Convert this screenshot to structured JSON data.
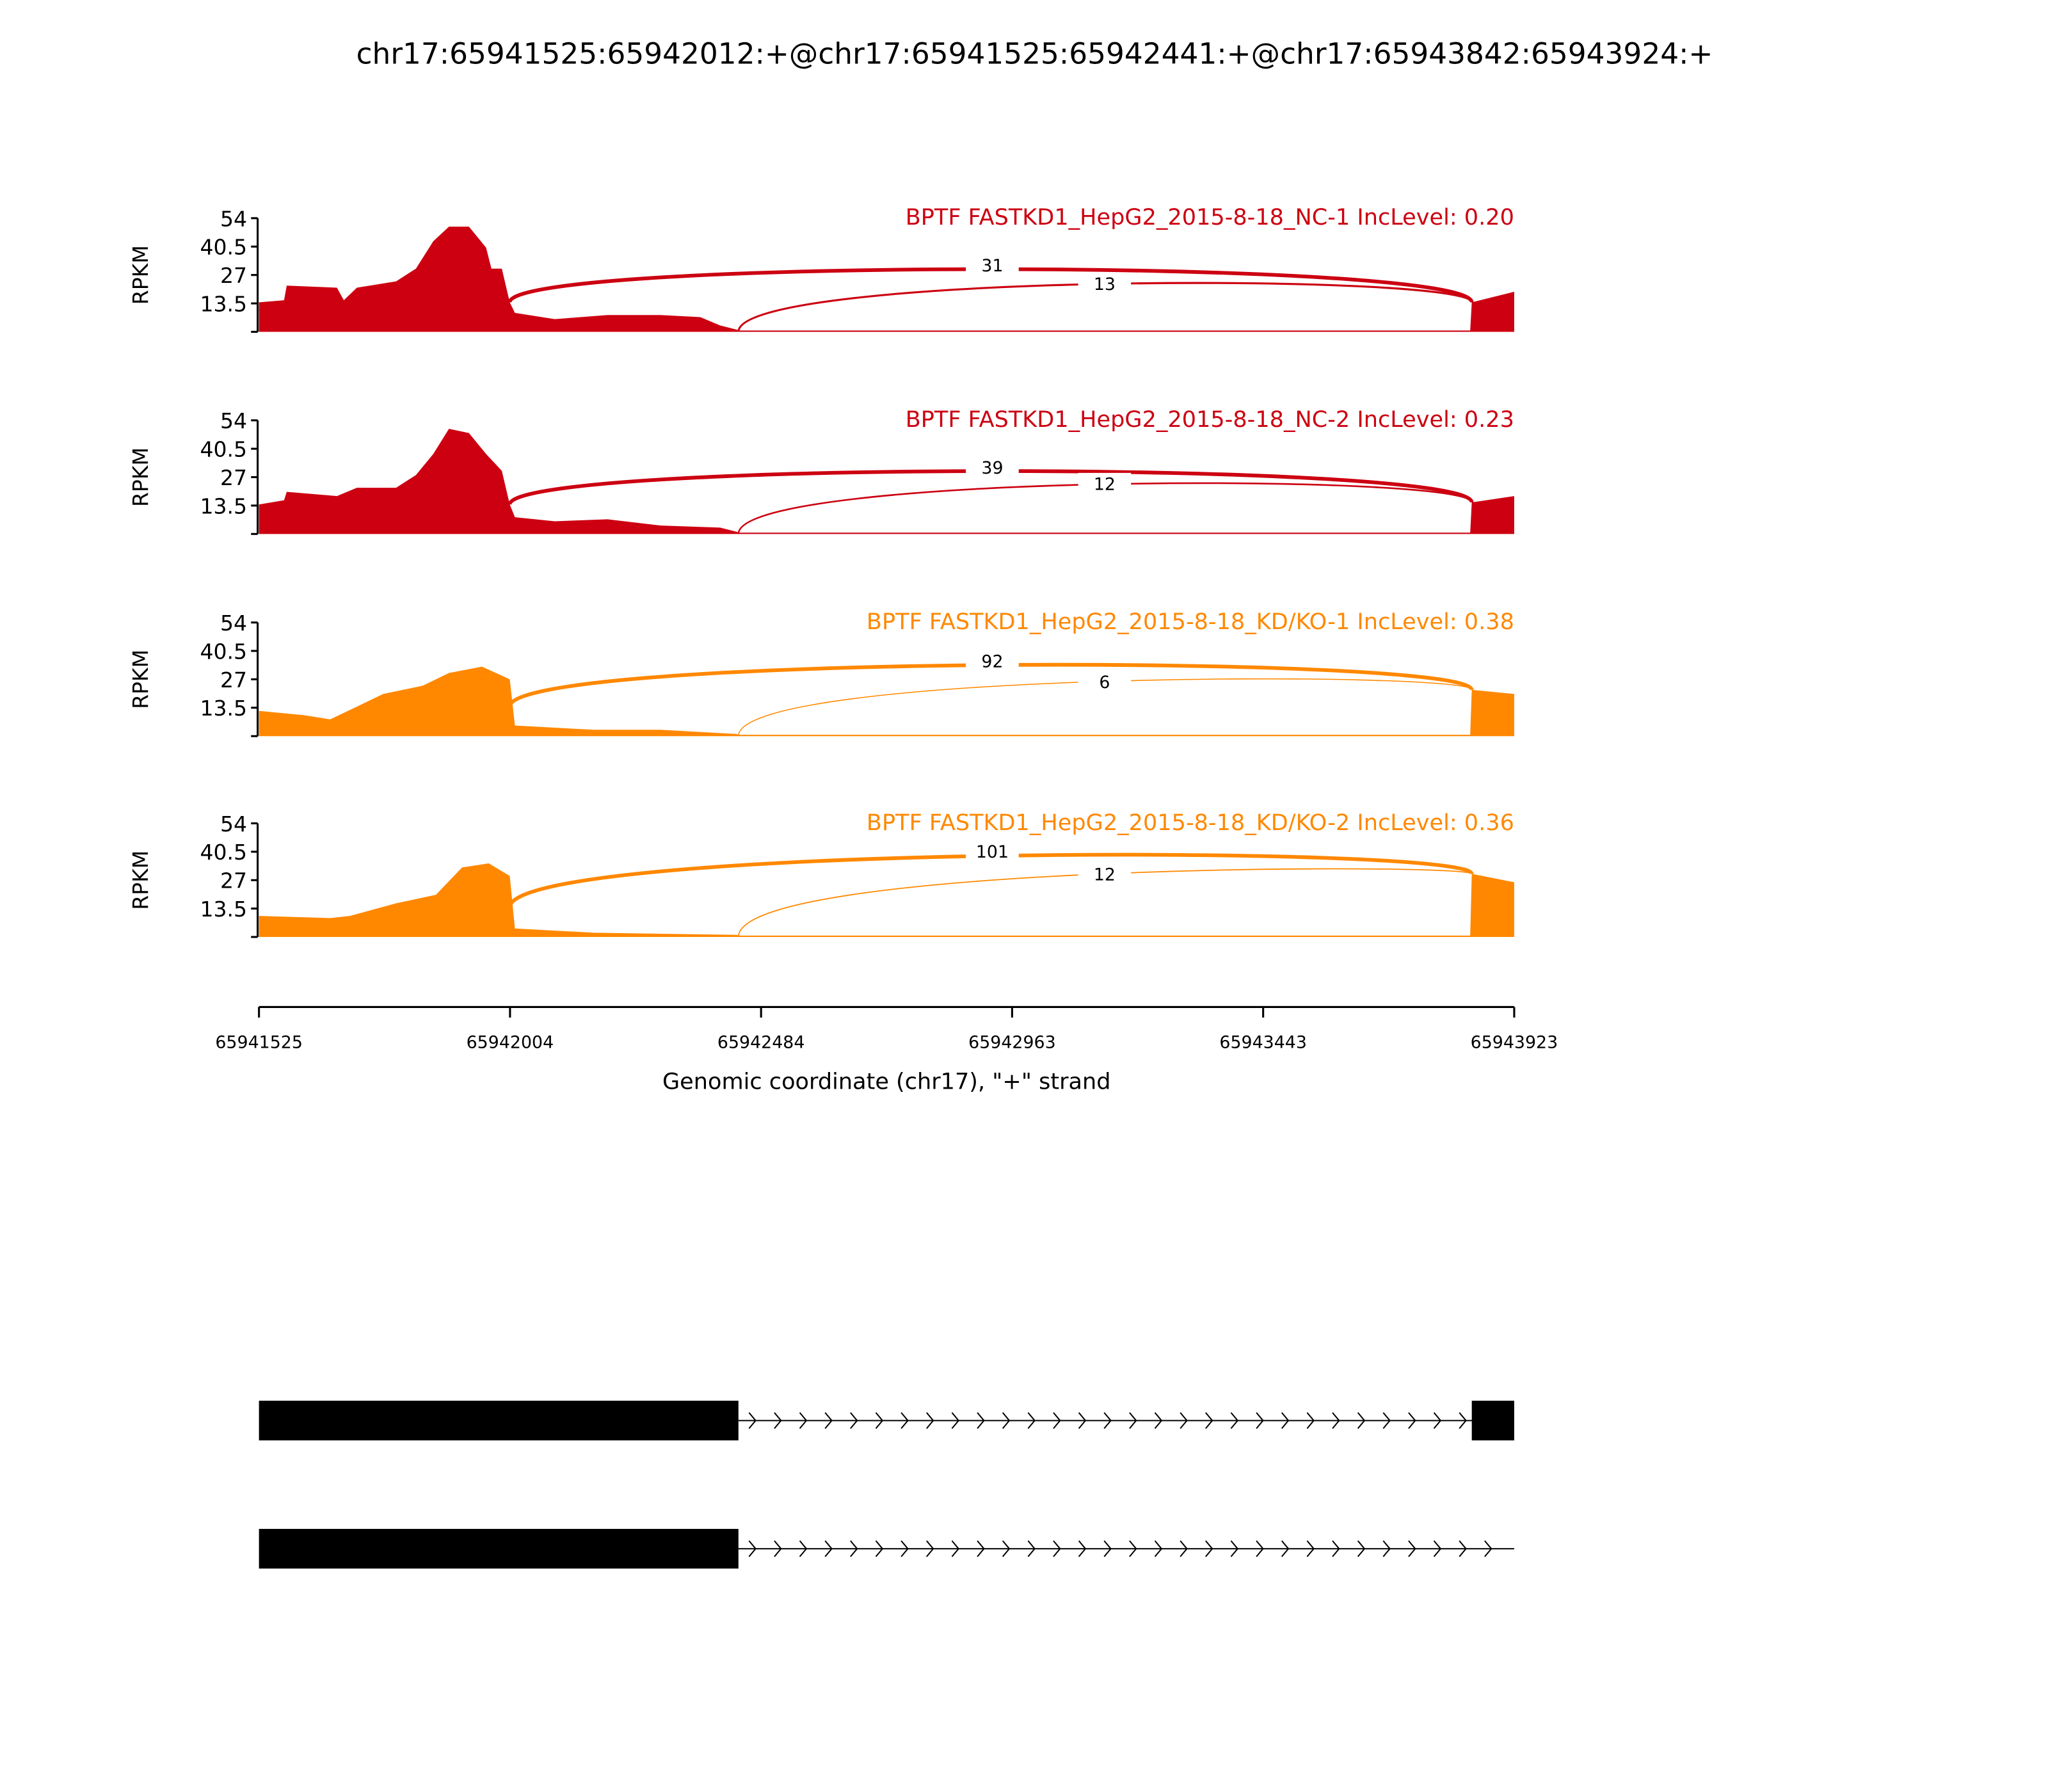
{
  "chart_data": {
    "type": "area",
    "title": "chr17:65941525:65942012:+@chr17:65941525:65942441:+@chr17:65943842:65943924:+",
    "xlabel": "Genomic coordinate (chr17), \"+\" strand",
    "ylabel": "RPKM",
    "xlim": [
      65941525,
      65943923
    ],
    "ylim": [
      0,
      54
    ],
    "yticks": [
      "13.5",
      "27",
      "40.5",
      "54"
    ],
    "xticks": [
      "65941525",
      "65942004",
      "65942484",
      "65942963",
      "65943443",
      "65943923"
    ],
    "colors": {
      "NC": "#cc0011",
      "KD": "#ff8800"
    },
    "panels": [
      {
        "title": "BPTF FASTKD1_HepG2_2015-8-18_NC-1 IncLevel: 0.20",
        "group": "NC",
        "coverage": [
          [
            65941525,
            14
          ],
          [
            65941573,
            15
          ],
          [
            65941578,
            22
          ],
          [
            65941674,
            21
          ],
          [
            65941687,
            15
          ],
          [
            65941712,
            21
          ],
          [
            65941787,
            24
          ],
          [
            65941825,
            30
          ],
          [
            65941858,
            43
          ],
          [
            65941888,
            50
          ],
          [
            65941926,
            50
          ],
          [
            65941959,
            40
          ],
          [
            65941969,
            30
          ],
          [
            65941989,
            30
          ],
          [
            65942004,
            14
          ],
          [
            65942014,
            9
          ],
          [
            65942090,
            6
          ],
          [
            65942191,
            8
          ],
          [
            65942292,
            8
          ],
          [
            65942368,
            7
          ],
          [
            65942406,
            3
          ],
          [
            65942438,
            1
          ],
          [
            65942441,
            0.6
          ],
          [
            65943839,
            0.6
          ],
          [
            65943842,
            14
          ],
          [
            65943923,
            19
          ]
        ],
        "junctions": [
          {
            "from": 65942004,
            "to": 65943842,
            "count": "31",
            "peak": 30
          },
          {
            "from": 65942441,
            "to": 65943842,
            "count": "13",
            "peak": 23
          }
        ]
      },
      {
        "title": "BPTF FASTKD1_HepG2_2015-8-18_NC-2 IncLevel: 0.23",
        "group": "NC",
        "coverage": [
          [
            65941525,
            14
          ],
          [
            65941573,
            16
          ],
          [
            65941578,
            20
          ],
          [
            65941674,
            18
          ],
          [
            65941712,
            22
          ],
          [
            65941787,
            22
          ],
          [
            65941825,
            28
          ],
          [
            65941858,
            38
          ],
          [
            65941888,
            50
          ],
          [
            65941926,
            48
          ],
          [
            65941959,
            38
          ],
          [
            65941989,
            30
          ],
          [
            65942004,
            14
          ],
          [
            65942014,
            8
          ],
          [
            65942090,
            6
          ],
          [
            65942191,
            7
          ],
          [
            65942292,
            4
          ],
          [
            65942406,
            3
          ],
          [
            65942438,
            1
          ],
          [
            65942441,
            0.6
          ],
          [
            65943839,
            0.6
          ],
          [
            65943842,
            15
          ],
          [
            65943923,
            18
          ]
        ],
        "junctions": [
          {
            "from": 65942004,
            "to": 65943842,
            "count": "39",
            "peak": 30
          },
          {
            "from": 65942441,
            "to": 65943842,
            "count": "12",
            "peak": 24
          }
        ]
      },
      {
        "title": "BPTF FASTKD1_HepG2_2015-8-18_KD/KO-1 IncLevel: 0.38",
        "group": "KD",
        "coverage": [
          [
            65941525,
            12
          ],
          [
            65941610,
            10
          ],
          [
            65941661,
            8
          ],
          [
            65941712,
            14
          ],
          [
            65941762,
            20
          ],
          [
            65941838,
            24
          ],
          [
            65941888,
            30
          ],
          [
            65941951,
            33
          ],
          [
            65942004,
            27
          ],
          [
            65942014,
            5
          ],
          [
            65942165,
            3
          ],
          [
            65942292,
            3
          ],
          [
            65942438,
            1
          ],
          [
            65942441,
            0.6
          ],
          [
            65943839,
            0.6
          ],
          [
            65943842,
            22
          ],
          [
            65943923,
            20
          ]
        ],
        "junctions": [
          {
            "from": 65942004,
            "to": 65943842,
            "count": "92",
            "peak": 34
          },
          {
            "from": 65942441,
            "to": 65943842,
            "count": "6",
            "peak": 26
          }
        ]
      },
      {
        "title": "BPTF FASTKD1_HepG2_2015-8-18_KD/KO-2 IncLevel: 0.36",
        "group": "KD",
        "coverage": [
          [
            65941525,
            10
          ],
          [
            65941661,
            9
          ],
          [
            65941699,
            10
          ],
          [
            65941787,
            16
          ],
          [
            65941863,
            20
          ],
          [
            65941913,
            33
          ],
          [
            65941964,
            35
          ],
          [
            65942004,
            29
          ],
          [
            65942014,
            4
          ],
          [
            65942165,
            2
          ],
          [
            65942438,
            1
          ],
          [
            65942441,
            0.6
          ],
          [
            65943839,
            0.6
          ],
          [
            65943842,
            30
          ],
          [
            65943923,
            26
          ]
        ],
        "junctions": [
          {
            "from": 65942004,
            "to": 65943842,
            "count": "101",
            "peak": 39
          },
          {
            "from": 65942441,
            "to": 65943842,
            "count": "12",
            "peak": 30
          }
        ]
      }
    ],
    "gene_models": [
      {
        "exons": [
          [
            65941525,
            65942441
          ],
          [
            65943842,
            65943923
          ]
        ],
        "line_end": 65943842
      },
      {
        "exons": [
          [
            65941525,
            65942441
          ]
        ],
        "line_end": 65943923
      }
    ]
  }
}
